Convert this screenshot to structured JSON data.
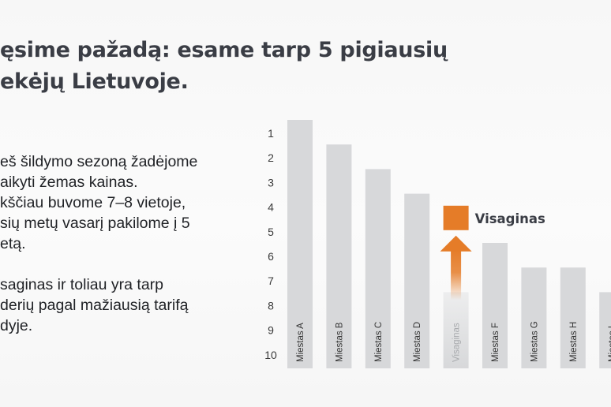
{
  "title_lines": [
    "ęsime pažadą: esame tarp 5 pigiausių",
    "ekėjų Lietuvoje."
  ],
  "paragraph1_lines": [
    "eš šildymo sezoną žadėjome",
    "aikyti žemas kainas.",
    "kščiau buvome 7–8 vietoje,",
    "sių metų vasarį pakilome į 5",
    "etą."
  ],
  "paragraph2_lines": [
    "saginas ir toliau yra tarp",
    "derių pagal mažiausią tarifą",
    "dyje."
  ],
  "colors": {
    "title": "#3a3d45",
    "bar": "#d7d8da",
    "highlight": "#e57c28",
    "axis_text": "#3a3a3a",
    "bar_label": "#333333"
  },
  "chart_data": {
    "type": "bar",
    "categories": [
      "Miestas A",
      "Miestas B",
      "Miestas C",
      "Miestas D",
      "Visaginas",
      "Miestas F",
      "Miestas G",
      "Miestas H",
      "Miestas I"
    ],
    "values": [
      1,
      2,
      3,
      4,
      8,
      6,
      7,
      7,
      8
    ],
    "ylabel": "",
    "y_ticks": [
      "1",
      "2",
      "3",
      "4",
      "5",
      "6",
      "7",
      "8",
      "9",
      "10"
    ],
    "ylim": [
      1,
      10
    ],
    "y_inverted": true,
    "grid": false,
    "highlight": {
      "category": "Visaginas",
      "label": "Visaginas",
      "from_rank": 8,
      "to_rank": 5,
      "icon": "up-arrow-icon"
    }
  }
}
